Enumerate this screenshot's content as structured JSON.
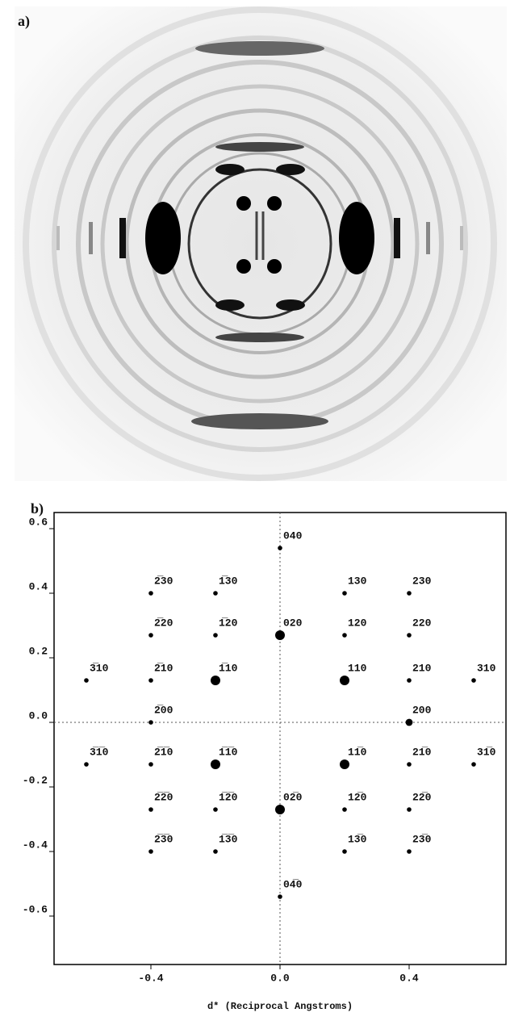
{
  "panel_a": {
    "label": "a)"
  },
  "chart_data": {
    "type": "scatter",
    "label": "b)",
    "x_label": "d* (Reciprocal Angstroms)",
    "xlim": [
      -0.7,
      0.7
    ],
    "ylim": [
      -0.75,
      0.65
    ],
    "xticks": [
      -0.4,
      {
        "value": 0,
        "label": "0.0"
      },
      0.4
    ],
    "yticks": [
      0.6,
      0.4,
      0.2,
      {
        "value": 0,
        "label": "0.0"
      },
      -0.2,
      -0.4,
      -0.6
    ],
    "color": "#000000",
    "labels": [
      "040",
      "2̅30",
      "1̅30",
      "130",
      "230",
      "2̅20",
      "1̅20",
      "020",
      "120",
      "220",
      "3̅10",
      "2̅10",
      "1̅10",
      "110",
      "210",
      "310",
      "2̅00",
      "200",
      "3̅1̅0",
      "2̅1̅0",
      "1̅1̅0",
      "11̅0",
      "21̅0",
      "31̅0",
      "2̅2̅0",
      "1̅2̅0",
      "02̅0",
      "12̅0",
      "22̅0",
      "2̅3̅0",
      "1̅3̅0",
      "13̅0",
      "23̅0",
      "04̅0"
    ],
    "x": [
      0,
      -0.4,
      -0.2,
      0.2,
      0.4,
      -0.4,
      -0.2,
      0,
      0.2,
      0.4,
      -0.6,
      -0.4,
      -0.2,
      0.2,
      0.4,
      0.6,
      -0.4,
      0.4,
      -0.6,
      -0.4,
      -0.2,
      0.2,
      0.4,
      0.6,
      -0.4,
      -0.2,
      0,
      0.2,
      0.4,
      -0.4,
      -0.2,
      0.2,
      0.4,
      0
    ],
    "y": [
      0.54,
      0.4,
      0.4,
      0.4,
      0.4,
      0.27,
      0.27,
      0.27,
      0.27,
      0.27,
      0.13,
      0.13,
      0.13,
      0.13,
      0.13,
      0.13,
      0,
      0,
      -0.13,
      -0.13,
      -0.13,
      -0.13,
      -0.13,
      -0.13,
      -0.27,
      -0.27,
      -0.27,
      -0.27,
      -0.27,
      -0.4,
      -0.4,
      -0.4,
      -0.4,
      -0.54
    ],
    "sizes": [
      1,
      1,
      1,
      1,
      1,
      1,
      1,
      3,
      1,
      1,
      1,
      1,
      3,
      3,
      1,
      1,
      1,
      2,
      1,
      1,
      3,
      3,
      1,
      1,
      1,
      1,
      3,
      1,
      1,
      1,
      1,
      1,
      1,
      1
    ]
  }
}
